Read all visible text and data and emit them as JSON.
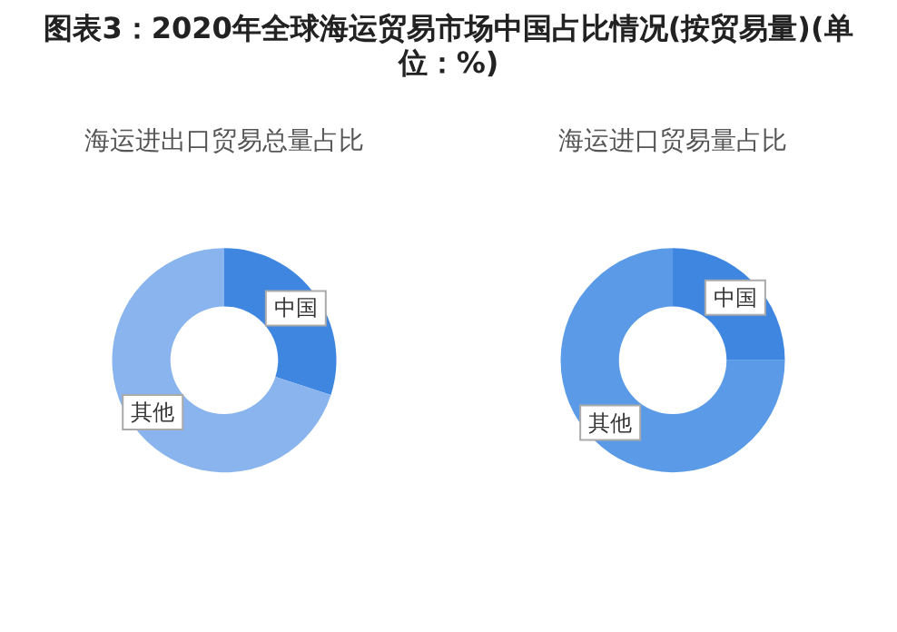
{
  "chart_data": [
    {
      "type": "donut",
      "title": "图表3：2020年全球海运贸易市场中国占比情况(按贸易量)(单位：%)",
      "subtitle": "海运进出口贸易总量占比",
      "categories": [
        "中国",
        "其他"
      ],
      "values": [
        30,
        70
      ],
      "colors": [
        "#3f86e0",
        "#8ab4ee"
      ],
      "legend": false
    },
    {
      "type": "donut",
      "title": "海运进口贸易量占比",
      "categories": [
        "中国",
        "其他"
      ],
      "values": [
        25,
        75
      ],
      "colors": [
        "#3f86e0",
        "#5a9ae6"
      ],
      "legend": false
    }
  ]
}
